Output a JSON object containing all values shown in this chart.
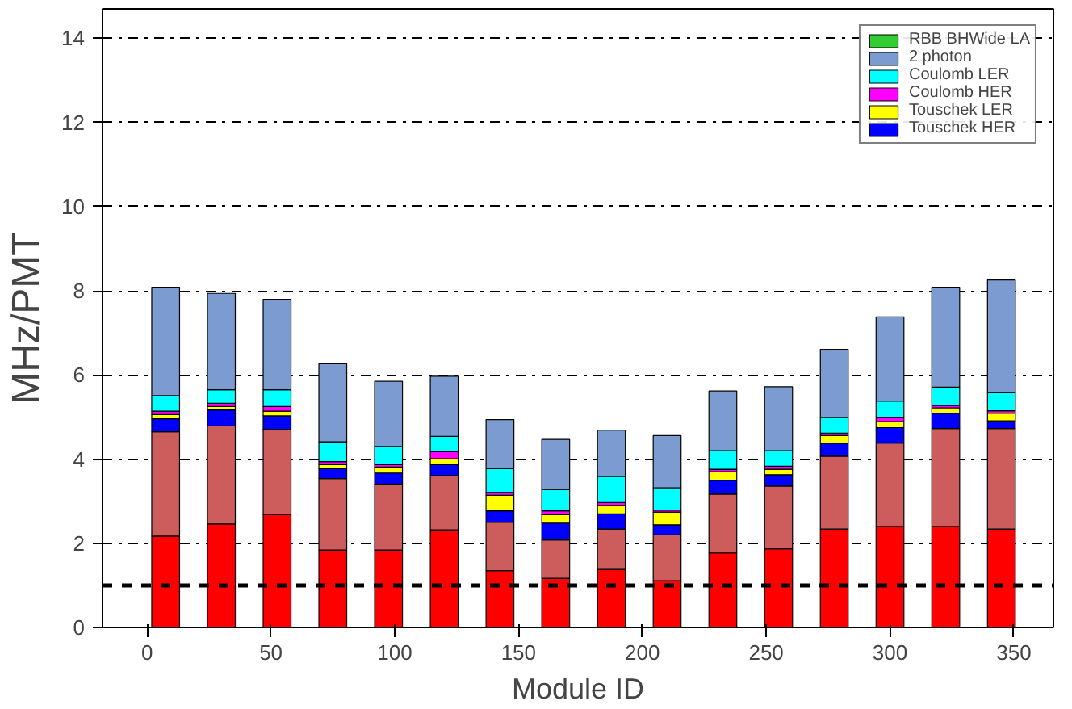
{
  "chart_data": {
    "type": "bar",
    "stacked": true,
    "ylabel": "MHz/PMT",
    "xlabel": "Module ID",
    "x": [
      7.5,
      30,
      52.5,
      75,
      97.5,
      120,
      142.5,
      165,
      187.5,
      210,
      232.5,
      255,
      277.5,
      300,
      322.5,
      345
    ],
    "xlim": [
      -18,
      366
    ],
    "ylim": [
      0,
      14.7
    ],
    "xticks": [
      0,
      50,
      100,
      150,
      200,
      250,
      300,
      350
    ],
    "yticks": [
      0,
      2,
      4,
      6,
      8,
      10,
      12,
      14
    ],
    "grid": "y",
    "legend": "top right",
    "ref_lines": [
      {
        "axis": "y",
        "value": 1,
        "color": "#000000",
        "line_style": "dashed"
      }
    ],
    "series": [
      {
        "color": "#ff0000",
        "values": [
          2.17,
          2.46,
          2.68,
          1.84,
          1.84,
          2.32,
          1.35,
          1.17,
          1.38,
          1.11,
          1.77,
          1.87,
          2.34,
          2.4,
          2.4,
          2.34
        ]
      },
      {
        "color": "#cd5c5c",
        "values": [
          2.48,
          2.33,
          2.03,
          1.7,
          1.57,
          1.29,
          1.15,
          0.91,
          0.96,
          1.09,
          1.4,
          1.49,
          1.73,
          1.98,
          2.33,
          2.39
        ]
      },
      {
        "name": "Touschek HER",
        "color": "#0000ff",
        "values": [
          0.31,
          0.38,
          0.32,
          0.24,
          0.26,
          0.26,
          0.27,
          0.4,
          0.36,
          0.24,
          0.33,
          0.27,
          0.31,
          0.37,
          0.36,
          0.18
        ]
      },
      {
        "name": "Touschek LER",
        "color": "#ffff00",
        "values": [
          0.1,
          0.08,
          0.11,
          0.09,
          0.14,
          0.14,
          0.37,
          0.2,
          0.2,
          0.3,
          0.2,
          0.13,
          0.18,
          0.14,
          0.13,
          0.18
        ]
      },
      {
        "name": "Coulomb HER",
        "color": "#ff00ff",
        "values": [
          0.08,
          0.08,
          0.11,
          0.07,
          0.06,
          0.17,
          0.07,
          0.09,
          0.07,
          0.05,
          0.06,
          0.07,
          0.06,
          0.1,
          0.06,
          0.06
        ]
      },
      {
        "name": "Coulomb LER",
        "color": "#00ffff",
        "values": [
          0.37,
          0.32,
          0.4,
          0.47,
          0.43,
          0.36,
          0.57,
          0.51,
          0.62,
          0.53,
          0.44,
          0.37,
          0.37,
          0.39,
          0.43,
          0.43
        ]
      },
      {
        "name": "2 photon",
        "color": "#7b9bd1",
        "values": [
          2.56,
          2.29,
          2.15,
          1.86,
          1.55,
          1.43,
          1.16,
          1.19,
          1.1,
          1.24,
          1.42,
          1.52,
          1.62,
          2.0,
          2.36,
          2.68
        ]
      },
      {
        "name": "RBB BHWide LA",
        "color": "#33cc33",
        "values": [
          null,
          null,
          null,
          null,
          null,
          null,
          null,
          null,
          null,
          null,
          null,
          null,
          null,
          null,
          null,
          null
        ]
      }
    ]
  }
}
